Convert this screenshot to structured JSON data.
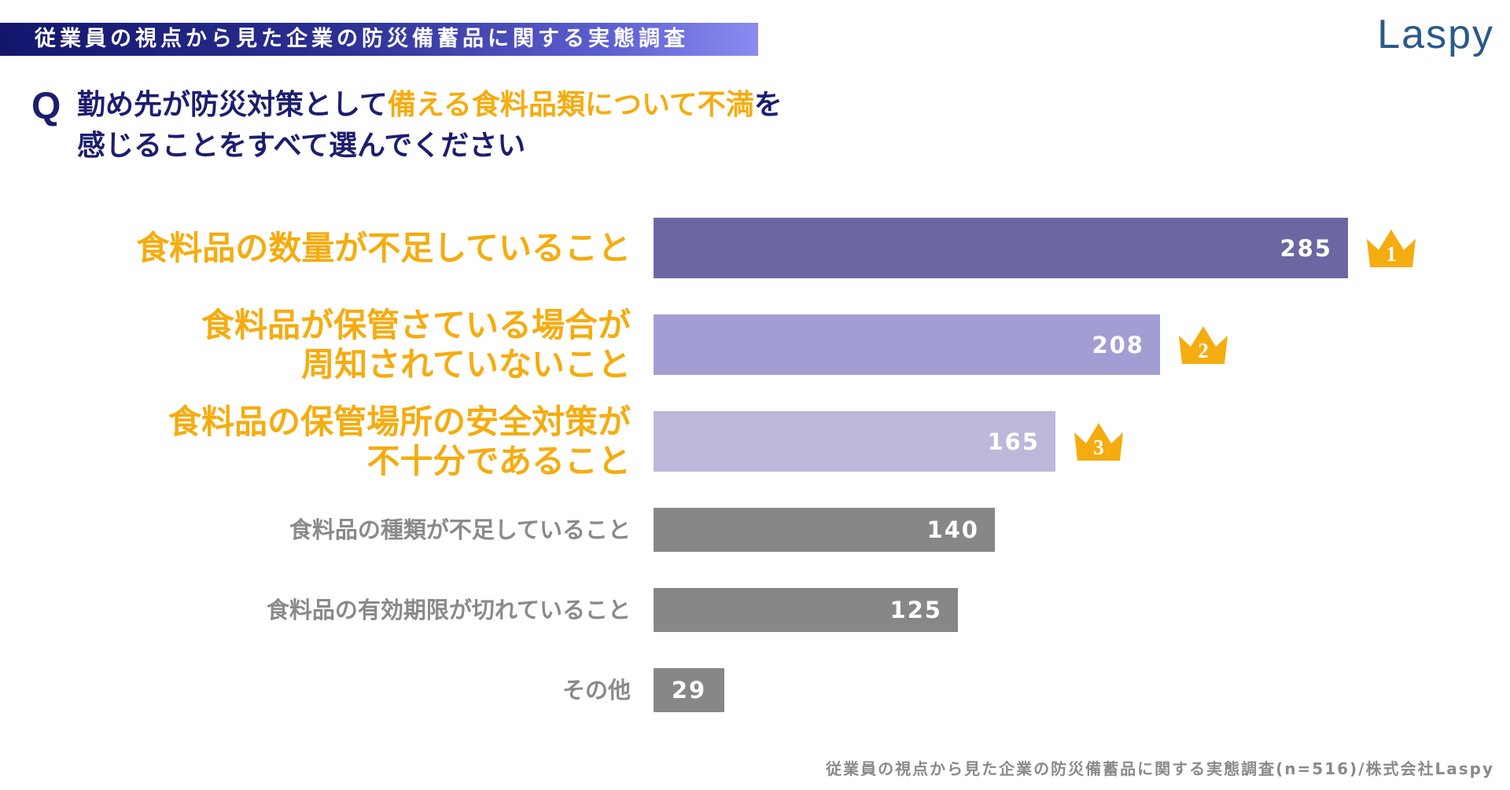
{
  "header": {
    "title": "従業員の視点から見た企業の防災備蓄品に関する実態調査",
    "brand": "Laspy"
  },
  "question": {
    "mark": "Q",
    "line1_before": "勤め先が防災対策として",
    "line1_highlight": "備える食料品類について不満",
    "line1_after": "を",
    "line2": "感じることをすべて選んでください"
  },
  "colors": {
    "navy": "#1b1e6e",
    "accent": "#f5ac10",
    "bar_rank1": "#6b67a2",
    "bar_rank2": "#a29ed4",
    "bar_rank3": "#bbb8da",
    "bar_other": "#878787"
  },
  "chart_data": {
    "type": "bar",
    "orientation": "horizontal",
    "categories": [
      "食料品の数量が不足していること",
      "食料品が保管さている場合が周知されていないこと",
      "食料品の保管場所の安全対策が不十分であること",
      "食料品の種類が不足していること",
      "食料品の有効期限が切れていること",
      "その他"
    ],
    "label_lines": [
      [
        "食料品の数量が不足していること"
      ],
      [
        "食料品が保管さている場合が",
        "周知されていないこと"
      ],
      [
        "食料品の保管場所の安全対策が",
        "不十分であること"
      ],
      [
        "食料品の種類が不足していること"
      ],
      [
        "食料品の有効期限が切れていること"
      ],
      [
        "その他"
      ]
    ],
    "values": [
      285,
      208,
      165,
      140,
      125,
      29
    ],
    "value_labels": [
      "285",
      "208",
      "165",
      "140",
      "125",
      "29"
    ],
    "ranks": [
      "1",
      "2",
      "3"
    ],
    "xlim": [
      0,
      285
    ],
    "grid": false,
    "legend": "none",
    "xlabel": "",
    "ylabel": ""
  },
  "footer": {
    "source": "従業員の視点から見た企業の防災備蓄品に関する実態調査(n=516)/株式会社Laspy"
  }
}
